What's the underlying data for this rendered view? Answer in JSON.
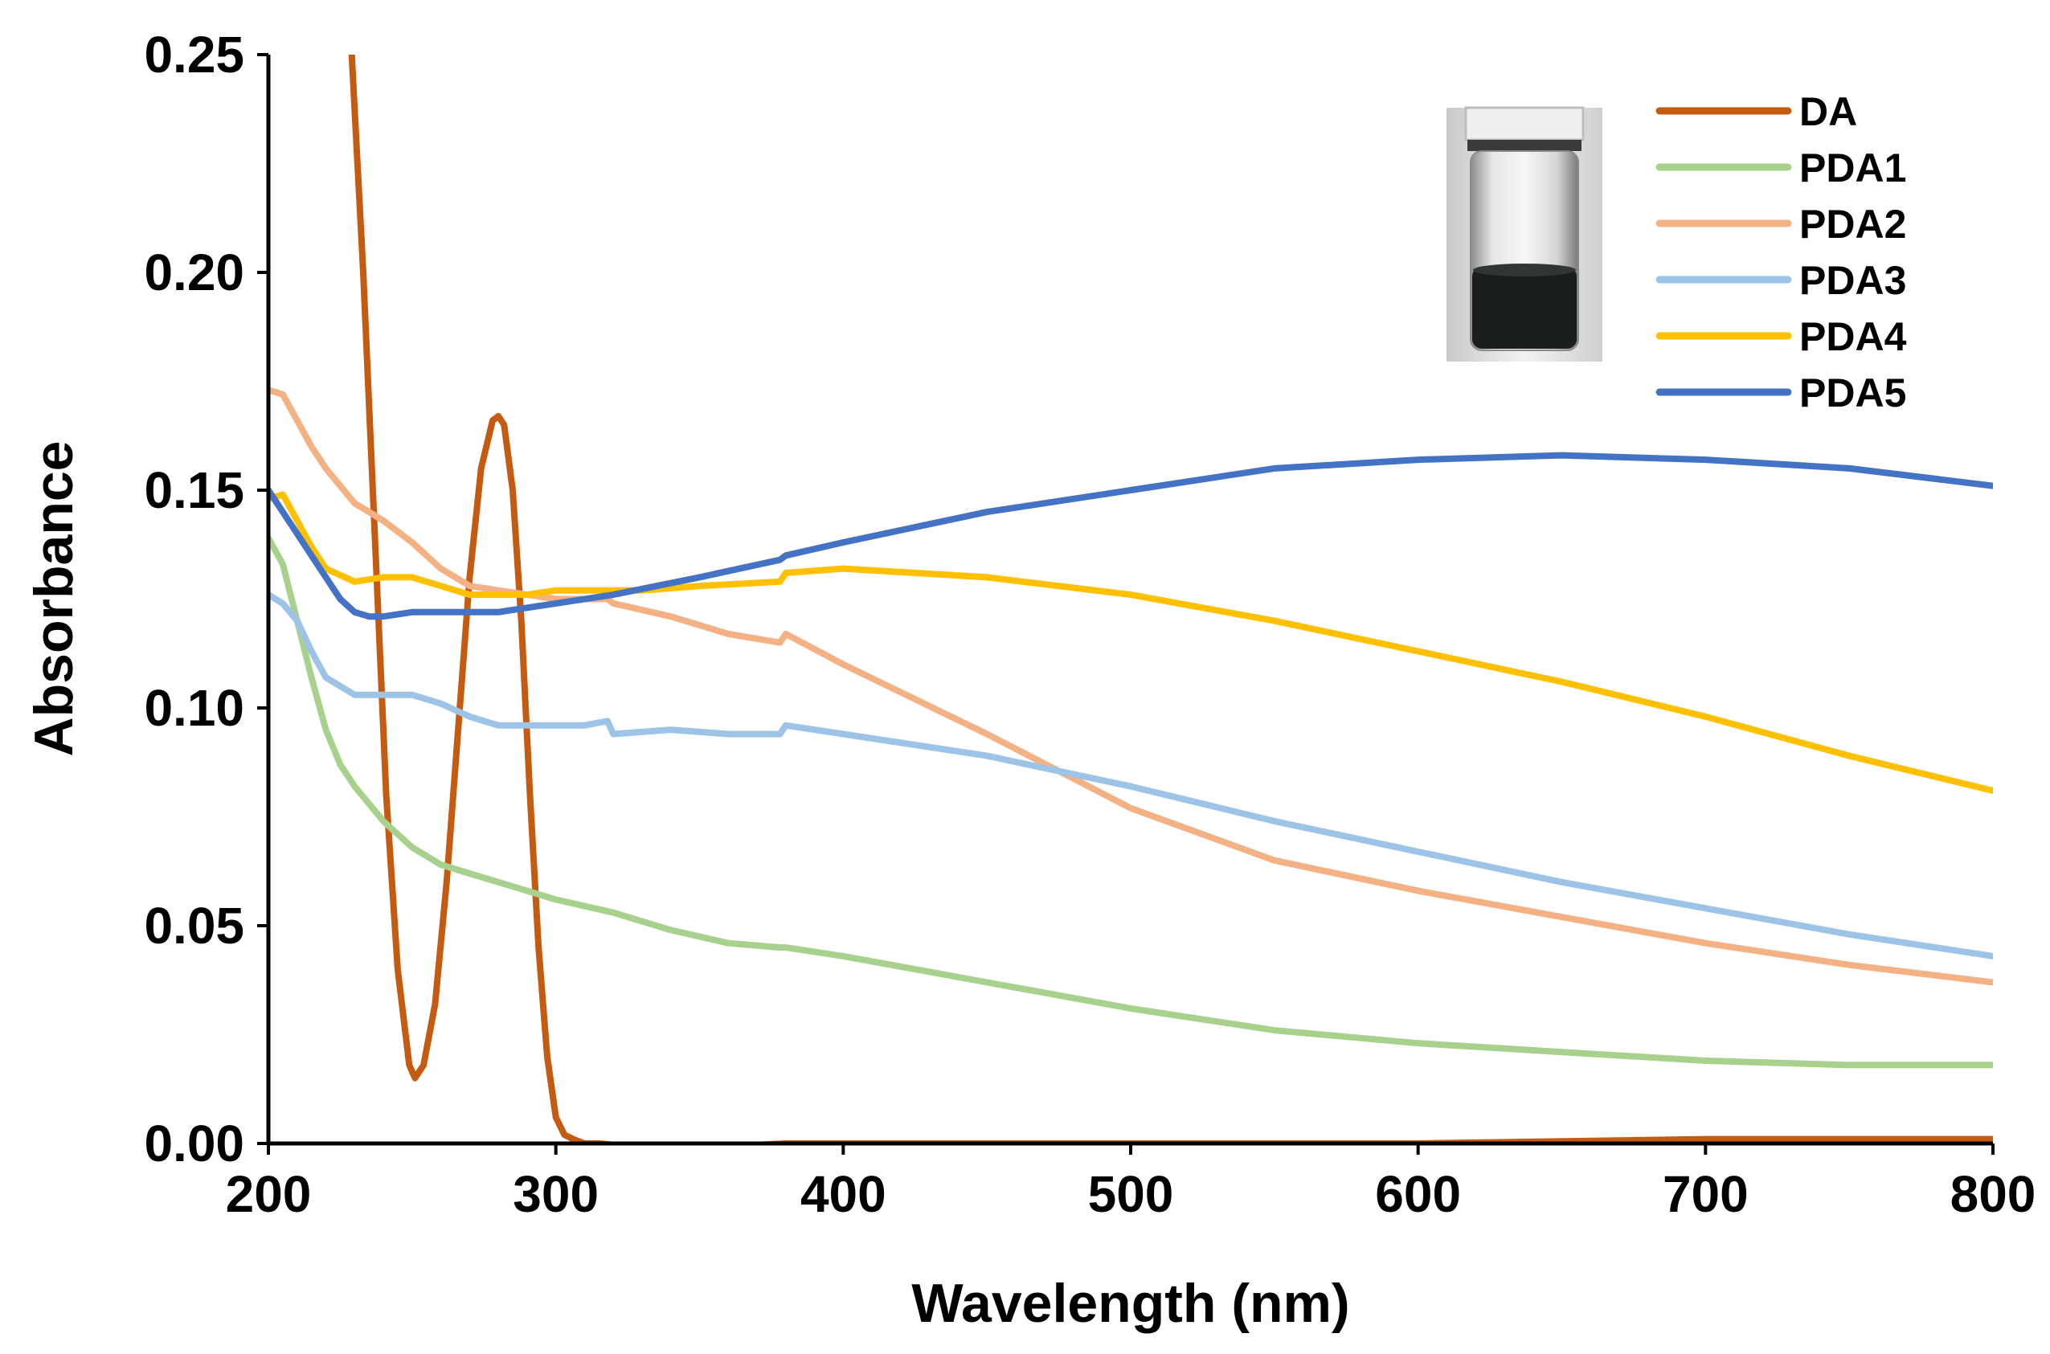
{
  "chart_data": {
    "type": "line",
    "title": "",
    "xlabel": "Wavelength (nm)",
    "ylabel": "Absorbance",
    "xlim": [
      200,
      800
    ],
    "ylim": [
      0,
      0.25
    ],
    "xticks": [
      "200",
      "300",
      "400",
      "500",
      "600",
      "700",
      "800"
    ],
    "yticks": [
      "0.00",
      "0.05",
      "0.10",
      "0.15",
      "0.20",
      "0.25"
    ],
    "grid": false,
    "legend_position": "top-right",
    "inset_image": "vial-photo-dark-solution",
    "series": [
      {
        "name": "DA",
        "color": "#c55a11",
        "x": [
          229,
          233,
          237,
          241,
          245,
          249,
          251,
          254,
          258,
          262,
          266,
          270,
          274,
          278,
          280,
          282,
          285,
          288,
          291,
          294,
          297,
          300,
          303,
          306,
          310,
          315,
          330,
          350,
          380,
          400,
          500,
          600,
          700,
          800
        ],
        "y": [
          0.25,
          0.2,
          0.14,
          0.08,
          0.04,
          0.018,
          0.015,
          0.018,
          0.032,
          0.06,
          0.095,
          0.13,
          0.155,
          0.166,
          0.167,
          0.165,
          0.15,
          0.12,
          0.08,
          0.045,
          0.02,
          0.006,
          0.002,
          0.001,
          0.0,
          0.0,
          -0.001,
          -0.001,
          0.0,
          0.0,
          0.0,
          0.0,
          0.001,
          0.001
        ]
      },
      {
        "name": "PDA1",
        "color": "#a9d18e",
        "x": [
          200,
          205,
          210,
          215,
          220,
          225,
          230,
          240,
          250,
          260,
          270,
          280,
          290,
          300,
          320,
          340,
          360,
          378,
          380,
          400,
          450,
          500,
          550,
          600,
          650,
          700,
          750,
          800
        ],
        "y": [
          0.139,
          0.133,
          0.12,
          0.107,
          0.095,
          0.087,
          0.082,
          0.074,
          0.068,
          0.064,
          0.062,
          0.06,
          0.058,
          0.056,
          0.053,
          0.049,
          0.046,
          0.045,
          0.045,
          0.043,
          0.037,
          0.031,
          0.026,
          0.023,
          0.021,
          0.019,
          0.018,
          0.018
        ]
      },
      {
        "name": "PDA2",
        "color": "#f4b183",
        "x": [
          200,
          205,
          210,
          215,
          220,
          230,
          240,
          250,
          260,
          270,
          280,
          290,
          300,
          310,
          318,
          320,
          340,
          360,
          378,
          380,
          400,
          450,
          500,
          550,
          600,
          650,
          700,
          750,
          800
        ],
        "y": [
          0.173,
          0.172,
          0.166,
          0.16,
          0.155,
          0.147,
          0.143,
          0.138,
          0.132,
          0.128,
          0.127,
          0.126,
          0.125,
          0.125,
          0.125,
          0.124,
          0.121,
          0.117,
          0.115,
          0.117,
          0.11,
          0.094,
          0.077,
          0.065,
          0.058,
          0.052,
          0.046,
          0.041,
          0.037
        ]
      },
      {
        "name": "PDA3",
        "color": "#9dc3e6",
        "x": [
          200,
          205,
          210,
          215,
          220,
          225,
          230,
          240,
          250,
          260,
          270,
          280,
          290,
          300,
          310,
          318,
          320,
          340,
          360,
          378,
          380,
          400,
          450,
          500,
          550,
          600,
          650,
          700,
          750,
          800
        ],
        "y": [
          0.126,
          0.124,
          0.12,
          0.113,
          0.107,
          0.105,
          0.103,
          0.103,
          0.103,
          0.101,
          0.098,
          0.096,
          0.096,
          0.096,
          0.096,
          0.097,
          0.094,
          0.095,
          0.094,
          0.094,
          0.096,
          0.094,
          0.089,
          0.082,
          0.074,
          0.067,
          0.06,
          0.054,
          0.048,
          0.043
        ]
      },
      {
        "name": "PDA4",
        "color": "#ffc000",
        "x": [
          200,
          205,
          210,
          215,
          220,
          230,
          240,
          250,
          260,
          270,
          280,
          290,
          300,
          310,
          320,
          330,
          350,
          378,
          380,
          400,
          450,
          500,
          550,
          600,
          650,
          700,
          750,
          800
        ],
        "y": [
          0.148,
          0.149,
          0.143,
          0.137,
          0.132,
          0.129,
          0.13,
          0.13,
          0.128,
          0.126,
          0.126,
          0.126,
          0.127,
          0.127,
          0.127,
          0.127,
          0.128,
          0.129,
          0.131,
          0.132,
          0.13,
          0.126,
          0.12,
          0.113,
          0.106,
          0.098,
          0.089,
          0.081
        ]
      },
      {
        "name": "PDA5",
        "color": "#4472c4",
        "x": [
          200,
          205,
          210,
          215,
          220,
          225,
          230,
          235,
          240,
          250,
          260,
          270,
          280,
          290,
          300,
          320,
          350,
          378,
          380,
          400,
          450,
          500,
          550,
          600,
          650,
          700,
          750,
          800
        ],
        "y": [
          0.15,
          0.145,
          0.14,
          0.135,
          0.13,
          0.125,
          0.122,
          0.121,
          0.121,
          0.122,
          0.122,
          0.122,
          0.122,
          0.123,
          0.124,
          0.126,
          0.13,
          0.134,
          0.135,
          0.138,
          0.145,
          0.15,
          0.155,
          0.157,
          0.158,
          0.157,
          0.155,
          0.151
        ]
      }
    ]
  }
}
